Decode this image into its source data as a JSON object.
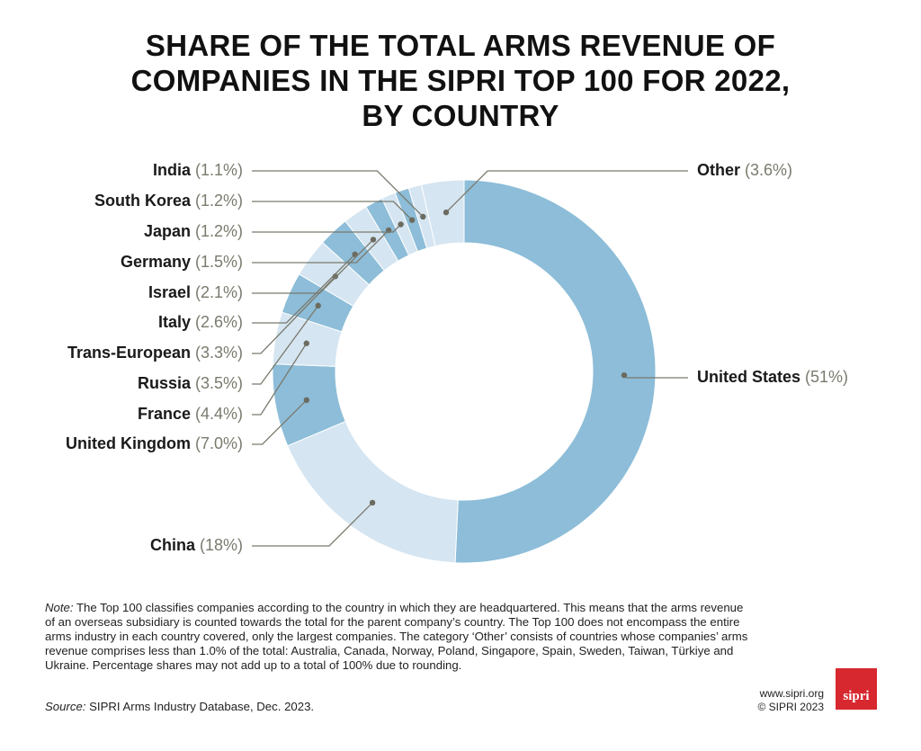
{
  "chart_data": {
    "type": "donut",
    "title": [
      "SHARE OF THE TOTAL ARMS REVENUE OF",
      "COMPANIES IN THE SIPRI TOP 100 FOR 2022,",
      "BY COUNTRY"
    ],
    "categories": [
      "United States",
      "China",
      "United Kingdom",
      "France",
      "Russia",
      "Trans-European",
      "Italy",
      "Israel",
      "Germany",
      "Japan",
      "South Korea",
      "India",
      "Other"
    ],
    "values": [
      51,
      18,
      7.0,
      4.4,
      3.5,
      3.3,
      2.6,
      2.1,
      1.5,
      1.2,
      1.2,
      1.1,
      3.6
    ],
    "value_labels": [
      "(51%)",
      "(18%)",
      "(7.0%)",
      "(4.4%)",
      "(3.5%)",
      "(3.3%)",
      "(2.6%)",
      "(2.1%)",
      "(1.5%)",
      "(1.2%)",
      "(1.2%)",
      "(1.1%)",
      "(3.6%)"
    ],
    "colors": [
      "#8dbdd8",
      "#d5e5f1",
      "#8dbdd8",
      "#d5e5f1",
      "#8dbdd8",
      "#d5e5f1",
      "#8dbdd8",
      "#d5e5f1",
      "#8dbdd8",
      "#d5e5f1",
      "#8dbdd8",
      "#d5e5f1",
      "#d5e5f1"
    ]
  },
  "note_label": "Note:",
  "note": "The Top 100 classifies companies according to the country in which they are headquartered. This means that the arms revenue of an overseas subsidiary is counted towards the total for the parent company’s country. The Top 100 does not encompass the entire arms industry in each country covered, only the largest companies. The category ‘Other’ consists of countries whose companies’ arms revenue comprises less than 1.0% of the total: Australia, Canada, Norway, Poland, Singapore, Spain, Sweden, Taiwan, Türkiye and Ukraine. Percentage shares may not add up to a total of 100% due to rounding.",
  "source_label": "Source:",
  "source": "SIPRI Arms Industry Database, Dec. 2023.",
  "footer": [
    "www.sipri.org",
    "© SIPRI 2023"
  ],
  "logo": "sipri"
}
